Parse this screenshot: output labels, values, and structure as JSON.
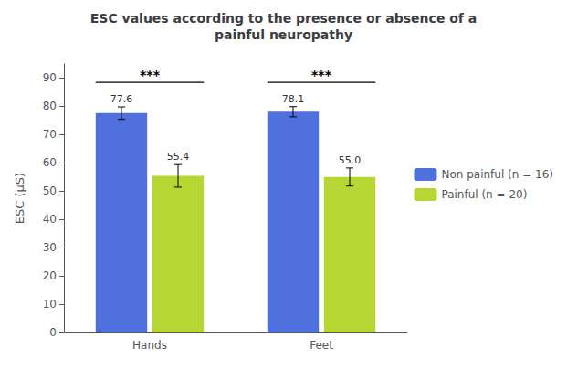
{
  "chart_data": {
    "type": "bar",
    "title": "ESC values according to the presence or absence of a\npainful neuropathy",
    "ylabel": "ESC (μS)",
    "categories": [
      "Hands",
      "Feet"
    ],
    "series": [
      {
        "name": "Non painful (n = 16)",
        "values": [
          77.6,
          78.1
        ],
        "errors": [
          2.2,
          1.8
        ],
        "value_labels": [
          "77.6",
          "78.1"
        ]
      },
      {
        "name": "Painful (n = 20)",
        "values": [
          55.4,
          55.0
        ],
        "errors": [
          4.0,
          3.2
        ],
        "value_labels": [
          "55.4",
          "55.0"
        ]
      }
    ],
    "annotations": [
      {
        "text": "***",
        "category": "Hands",
        "y": 88.5
      },
      {
        "text": "***",
        "category": "Feet",
        "y": 88.5
      }
    ],
    "ylim": [
      0,
      95
    ],
    "yticks": [
      0,
      10,
      20,
      30,
      40,
      50,
      60,
      70,
      80,
      90
    ],
    "grid": false,
    "legend": "right",
    "data_labels": true
  }
}
